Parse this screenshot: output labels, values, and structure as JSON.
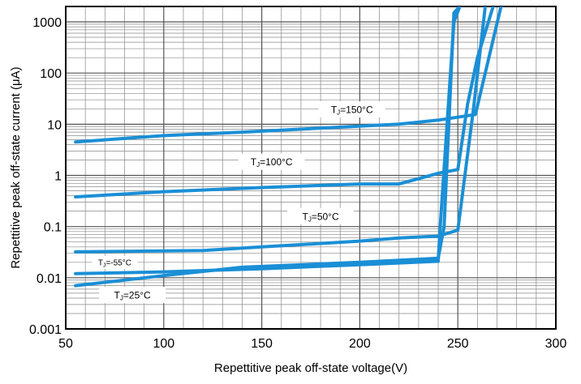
{
  "chart_data": {
    "type": "line",
    "title": "",
    "xlabel": "Repettitive peak off-state voltage(V)",
    "ylabel": "Repettitive peak off-state current (μA)",
    "xlim": [
      50,
      300
    ],
    "ylim": [
      0.001,
      2000
    ],
    "y_scale": "log",
    "grid": true,
    "line_color": "#1a8fd6",
    "x_ticks": [
      "50",
      "100",
      "150",
      "200",
      "250",
      "300"
    ],
    "y_ticks": [
      "0.001",
      "0.01",
      "0.1",
      "1",
      "10",
      "100",
      "1000"
    ],
    "series": [
      {
        "name": "TJ=150°C",
        "label_main": "T",
        "label_sub": "J",
        "label_rest": "=150°C",
        "x": [
          55,
          100,
          140,
          220,
          240,
          259,
          272
        ],
        "y": [
          4.5,
          6,
          7,
          10,
          12,
          15.5,
          2000
        ]
      },
      {
        "name": "TJ=100°C",
        "label_main": "T",
        "label_sub": "J",
        "label_rest": "=100°C",
        "x": [
          55,
          100,
          150,
          200,
          220,
          240,
          250,
          255,
          260,
          268
        ],
        "y": [
          0.38,
          0.48,
          0.58,
          0.68,
          0.68,
          1.1,
          1.3,
          25,
          200,
          2000
        ]
      },
      {
        "name": "TJ=50°C",
        "label_main": "T",
        "label_sub": "J",
        "label_rest": "=50°C",
        "x": [
          55,
          120,
          150,
          200,
          220,
          240,
          250,
          258,
          264
        ],
        "y": [
          0.032,
          0.034,
          0.04,
          0.052,
          0.06,
          0.065,
          0.085,
          20,
          2000
        ]
      },
      {
        "name": "TJ=-55°C",
        "label_main": "T",
        "label_sub": "J",
        "label_rest": "=-55°C",
        "x": [
          55,
          100,
          150,
          200,
          240,
          241,
          248,
          251
        ],
        "y": [
          0.012,
          0.013,
          0.015,
          0.018,
          0.021,
          0.1,
          1000,
          2000
        ]
      },
      {
        "name": "TJ=25°C",
        "label_main": "T",
        "label_sub": "J",
        "label_rest": "=25°C",
        "x": [
          55,
          100,
          140,
          200,
          240,
          243,
          248,
          251
        ],
        "y": [
          0.007,
          0.011,
          0.016,
          0.02,
          0.024,
          0.1,
          1500,
          2000
        ]
      }
    ]
  }
}
